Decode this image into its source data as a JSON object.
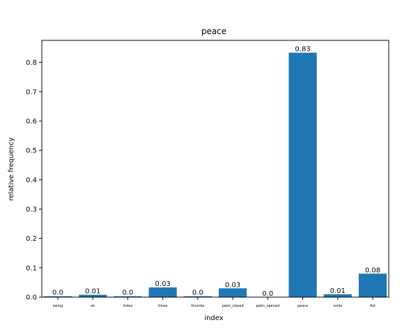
{
  "chart_data": {
    "type": "bar",
    "title": "peace",
    "xlabel": "index",
    "ylabel": "relative frequency",
    "categories": [
      "swing",
      "ok",
      "index",
      "three",
      "thumbs",
      "palm_closed",
      "palm_opened",
      "peace",
      "smile",
      "fist"
    ],
    "values": [
      0.003,
      0.008,
      0.003,
      0.033,
      0.003,
      0.03,
      0.0,
      0.833,
      0.01,
      0.08
    ],
    "data_labels": [
      "0.0",
      "0.01",
      "0.0",
      "0.03",
      "0.0",
      "0.03",
      "0.0",
      "0.83",
      "0.01",
      "0.08"
    ],
    "yticks": [
      "0.0",
      "0.1",
      "0.2",
      "0.3",
      "0.4",
      "0.5",
      "0.6",
      "0.7",
      "0.8"
    ],
    "ylim": [
      0,
      0.875
    ],
    "grid": false,
    "bar_color": "#1f77b4"
  }
}
